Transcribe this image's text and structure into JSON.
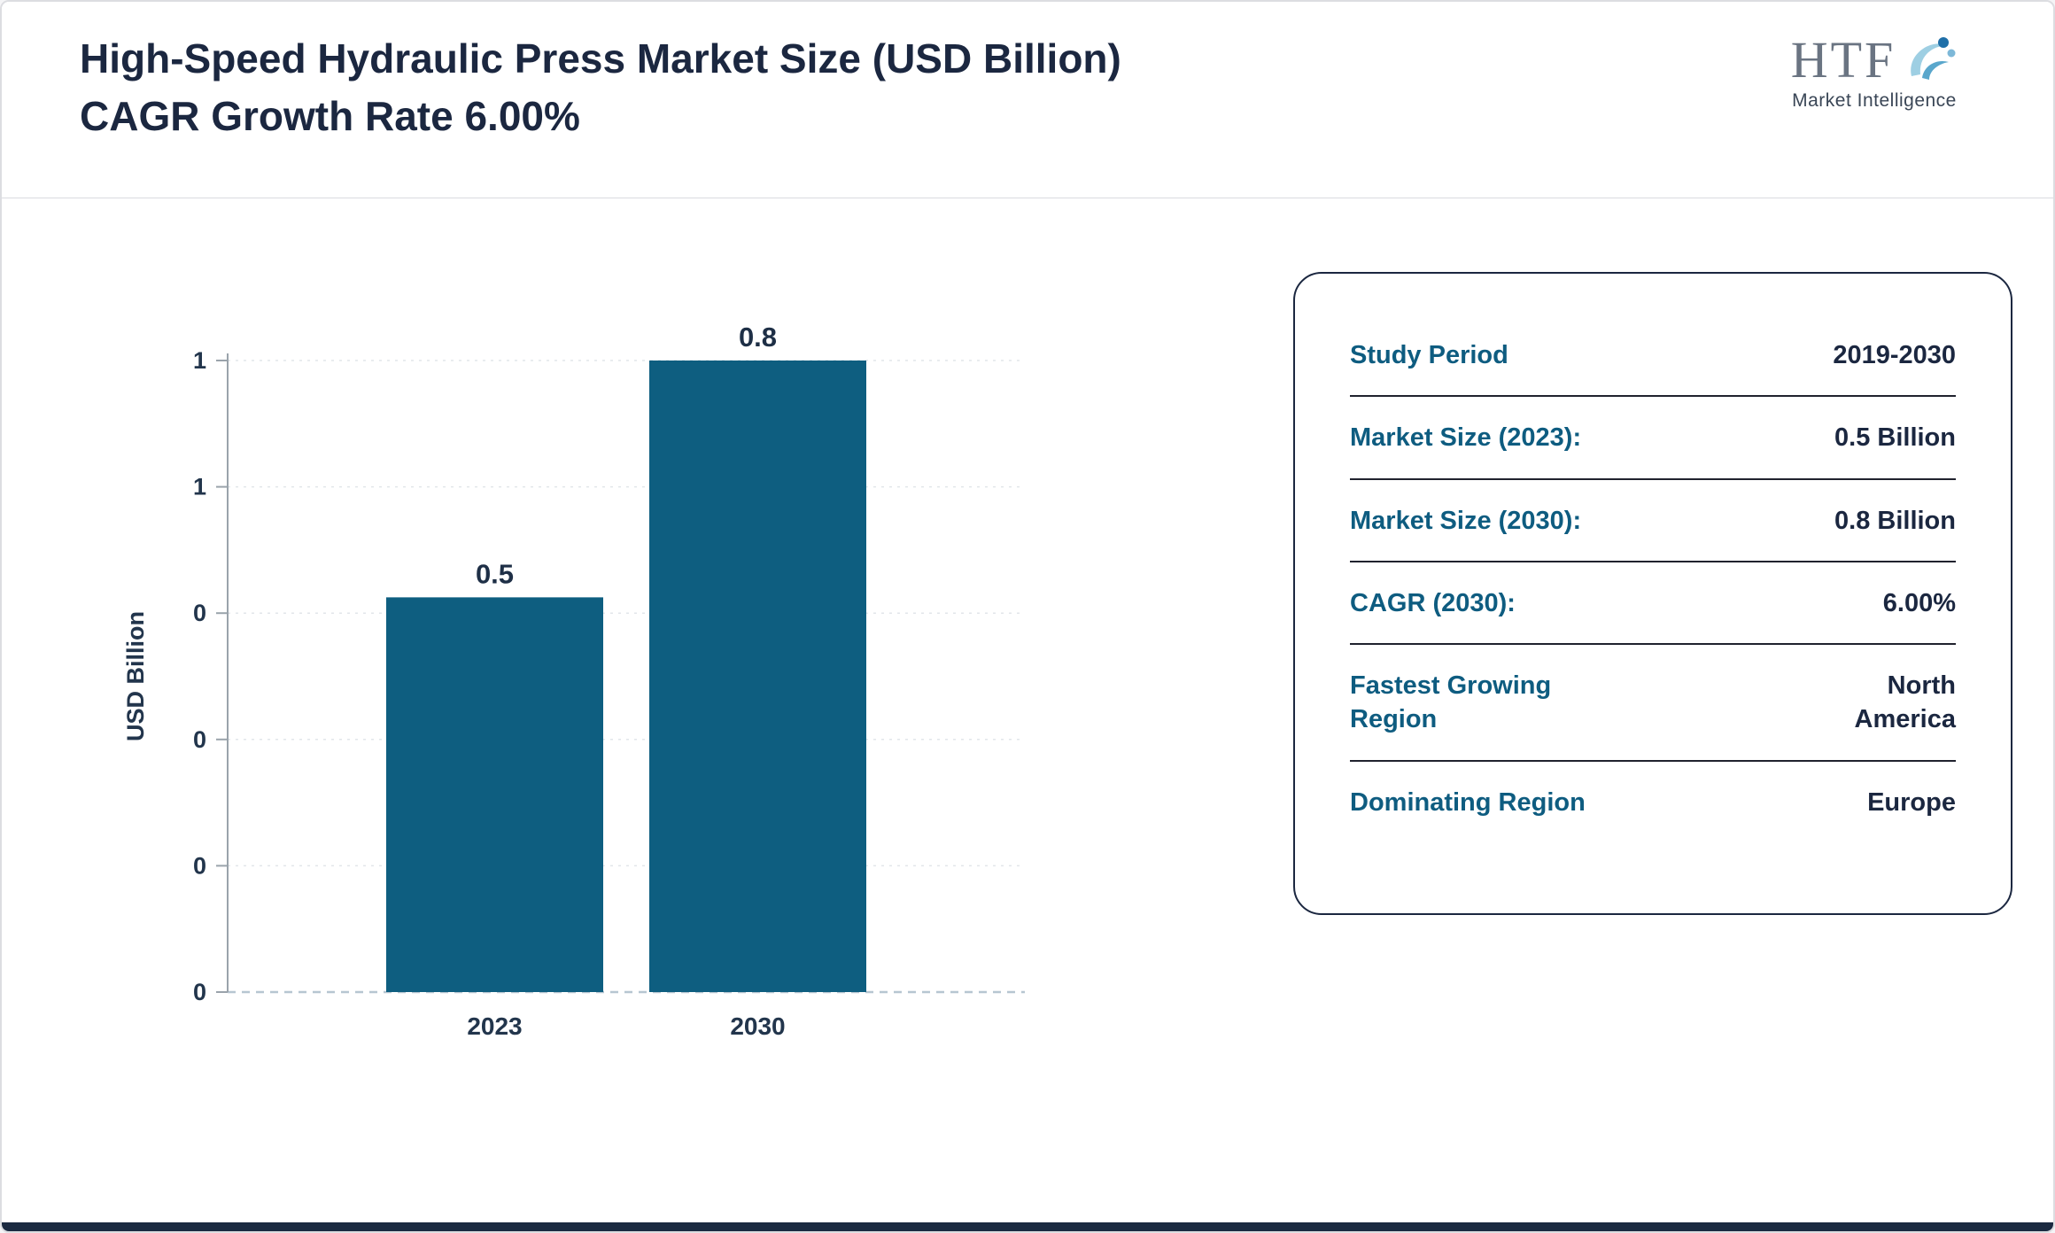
{
  "header": {
    "title": "High-Speed Hydraulic Press Market Size (USD Billion) CAGR Growth Rate 6.00%",
    "logo": {
      "text": "HTF",
      "subtext": "Market Intelligence"
    }
  },
  "chart_data": {
    "type": "bar",
    "categories": [
      "2023",
      "2030"
    ],
    "values": [
      0.5,
      0.8
    ],
    "bar_value_labels": [
      "0.5",
      "0.8"
    ],
    "title": "High-Speed Hydraulic Press Market Size (USD Billion)",
    "xlabel": "",
    "ylabel": "USD Billion",
    "ylim": [
      0,
      0.8
    ],
    "ytick_labels": [
      "0",
      "0",
      "0",
      "0",
      "1",
      "1"
    ],
    "grid": true,
    "legend": false,
    "bar_color": "#0e5e80"
  },
  "info_card": {
    "rows": [
      {
        "label": "Study Period",
        "value": "2019-2030"
      },
      {
        "label": "Market Size (2023):",
        "value": "0.5 Billion"
      },
      {
        "label": "Market Size (2030):",
        "value": "0.8 Billion"
      },
      {
        "label": "CAGR (2030):",
        "value": "6.00%"
      },
      {
        "label": "Fastest Growing Region",
        "value": "North America"
      },
      {
        "label": "Dominating Region",
        "value": "Europe"
      }
    ]
  },
  "colors": {
    "accent_teal": "#0e5e80",
    "dark_navy": "#1b2740",
    "bottom_bar": "#1b2a41"
  }
}
